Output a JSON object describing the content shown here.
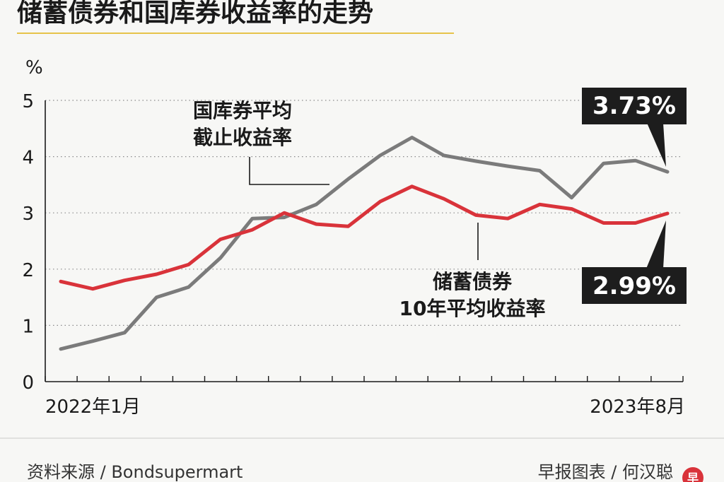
{
  "chart_data": {
    "type": "line",
    "title": "储蓄债券和国库券收益率的走势",
    "ylabel": "%",
    "ylim": [
      0,
      5
    ],
    "yticks": [
      "0",
      "1",
      "2",
      "3",
      "4",
      "5"
    ],
    "x_start_label": "2022年1月",
    "x_end_label": "2023年8月",
    "grid": true,
    "series": [
      {
        "name": "国库券平均截止收益率",
        "label_lines": [
          "国库券平均",
          "截止收益率"
        ],
        "color": "#7b7b7b",
        "end_label": "3.73%",
        "values": [
          0.58,
          0.72,
          0.87,
          1.5,
          1.68,
          2.2,
          2.9,
          2.92,
          3.15,
          3.6,
          4.02,
          4.34,
          4.02,
          3.92,
          3.83,
          3.75,
          3.27,
          3.88,
          3.93,
          3.73
        ]
      },
      {
        "name": "储蓄债券10年平均收益率",
        "label_lines": [
          "储蓄债券",
          "10年平均收益率"
        ],
        "color": "#d9333a",
        "end_label": "2.99%",
        "values": [
          1.78,
          1.65,
          1.8,
          1.91,
          2.08,
          2.53,
          2.7,
          3.0,
          2.8,
          2.76,
          3.2,
          3.47,
          3.25,
          2.96,
          2.9,
          3.15,
          3.07,
          2.82,
          2.82,
          2.99
        ]
      }
    ]
  },
  "footer": {
    "source": "资料来源 / Bondsupermart",
    "credit": "早报图表 / 何汉聪",
    "logo_glyph": "早"
  }
}
